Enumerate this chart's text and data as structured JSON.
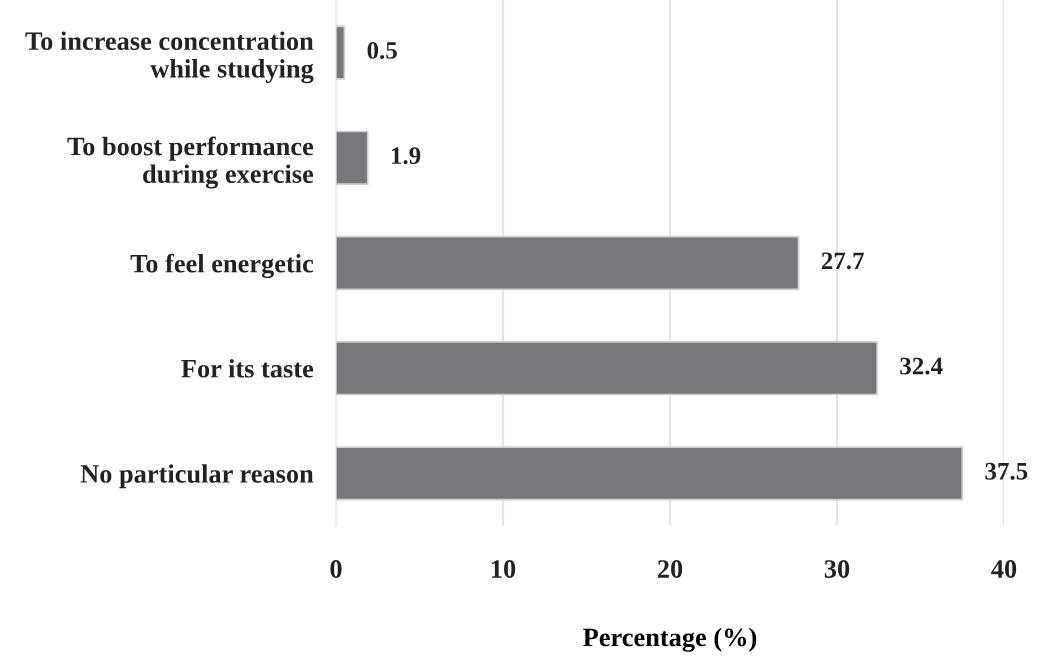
{
  "chart_data": {
    "type": "bar",
    "orientation": "horizontal",
    "categories": [
      "To increase concentration\nwhile studying",
      "To boost performance\nduring exercise",
      "To feel energetic",
      "For its taste",
      "No particular reason"
    ],
    "values": [
      0.5,
      1.9,
      27.7,
      32.4,
      37.5
    ],
    "color": "#77787b",
    "xlabel": "Percentage (%)",
    "xlim": [
      0,
      40
    ],
    "xticks": [
      0,
      10,
      20,
      30,
      40
    ],
    "grid": "x",
    "data_labels": true
  }
}
